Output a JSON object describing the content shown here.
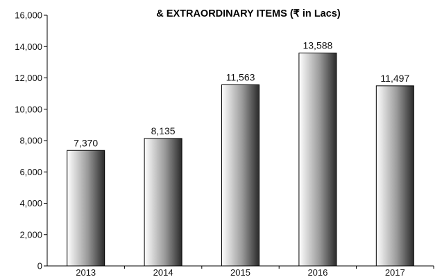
{
  "chart_data": {
    "type": "bar",
    "title": "& EXTRAORDINARY ITEMS (₹ in Lacs)",
    "categories": [
      "2013",
      "2014",
      "2015",
      "2016",
      "2017"
    ],
    "values": [
      7370,
      8135,
      11563,
      13588,
      11497
    ],
    "value_labels": [
      "7,370",
      "8,135",
      "11,563",
      "13,588",
      "11,497"
    ],
    "ylim": [
      0,
      16000
    ],
    "yticks": [
      0,
      2000,
      4000,
      6000,
      8000,
      10000,
      12000,
      14000,
      16000
    ],
    "ytick_labels": [
      "0",
      "2,000",
      "4,000",
      "6,000",
      "8,000",
      "10,000",
      "12,000",
      "14,000",
      "16,000"
    ],
    "grid": false,
    "bar_fill": "gradient white-to-dark-grey",
    "colors": {
      "bar_light": "#ffffff",
      "bar_dark": "#2a2a2a",
      "axis": "#000000"
    }
  }
}
